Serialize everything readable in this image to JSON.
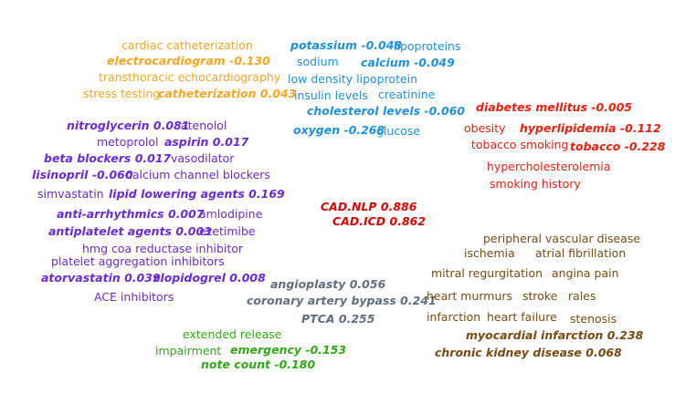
{
  "center": {
    "cad_nlp": "CAD.NLP  0.886",
    "cad_icd": "CAD.ICD  0.862"
  },
  "procedures": {
    "cardiac_catheterization": "cardiac catheterization",
    "electrocardiogram": "electrocardiogram -0.130",
    "transthoracic_echo": "transthoracic echocardiography",
    "stress_testing": "stress testing",
    "catheterization": "catheterization  0.043"
  },
  "labs": {
    "potassium": "potassium -0.048",
    "lipoproteins": "lipoproteins",
    "sodium": "sodium",
    "calcium": "calcium -0.049",
    "ldl": "low density lipoprotein",
    "insulin": "insulin levels",
    "creatinine": "creatinine",
    "cholesterol": "cholesterol levels -0.060",
    "oxygen": "oxygen -0.268",
    "glucose": "glucose"
  },
  "risk_factors": {
    "diabetes": "diabetes mellitus -0.005",
    "obesity": "obesity",
    "hyperlipidemia": "hyperlipidemia -0.112",
    "tobacco_smoking": "tobacco smoking",
    "tobacco": "tobacco -0.228",
    "hypercholesterolemia": "hypercholesterolemia",
    "smoking_history": "smoking history"
  },
  "medications": {
    "nitroglycerin": "nitroglycerin  0.081",
    "atenolol": "atenolol",
    "metoprolol": "metoprolol",
    "aspirin": "aspirin  0.017",
    "beta_blockers": "beta blockers  0.017",
    "vasodilator": "vasodilator",
    "lisinopril": "lisinopril -0.060",
    "ccb": "calcium channel blockers",
    "simvastatin": "simvastatin",
    "lipid_lowering": "lipid lowering agents  0.169",
    "anti_arrhythmics": "anti-arrhythmics  0.007",
    "amlodipine": "amlodipine",
    "antiplatelet": "antiplatelet agents  0.003",
    "ezetimibe": "ezetimibe",
    "hmg": "hmg coa reductase inhibitor",
    "platelet_aggregation": "platelet aggregation inhibitors",
    "atorvastatin": "atorvastatin  0.039",
    "clopidogrel": "clopidogrel  0.008",
    "ace": "ACE inhibitors"
  },
  "interventions": {
    "angioplasty": "angioplasty  0.056",
    "cabg": "coronary artery bypass  0.241",
    "ptca": "PTCA  0.255"
  },
  "notes": {
    "extended_release": "extended release",
    "impairment": "impairment",
    "emergency": "emergency -0.153",
    "note_count": "note count -0.180"
  },
  "conditions": {
    "pvd": "peripheral vascular disease",
    "ischemia": "ischemia",
    "afib": "atrial fibrillation",
    "mitral": "mitral regurgitation",
    "angina": "angina pain",
    "murmurs": "heart murmurs",
    "stroke": "stroke",
    "rales": "rales",
    "infarction": "infarction",
    "heart_failure": "heart failure",
    "stenosis": "stenosis",
    "mi": "myocardial infarction  0.238",
    "ckd": "chronic kidney disease  0.068"
  },
  "colors": {
    "procedures": "#f5a623",
    "labs": "#1e90e0",
    "risk_factors": "#e8210f",
    "medications": "#6a2ad8",
    "center": "#e00000",
    "interventions": "#5f6f7f",
    "notes": "#2eaa14",
    "conditions": "#7a4a12"
  }
}
